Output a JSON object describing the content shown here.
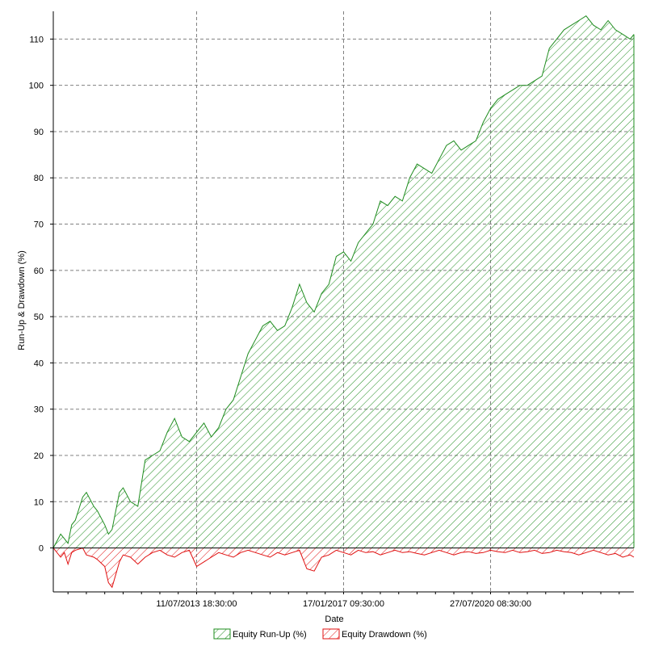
{
  "chart_data": {
    "type": "area",
    "xlabel": "Date",
    "ylabel": "Run-Up & Drawdown (%)",
    "ylim": [
      -9.5,
      116
    ],
    "y_ticks": [
      0,
      10,
      20,
      30,
      40,
      50,
      60,
      70,
      80,
      90,
      100,
      110
    ],
    "x_ticks": [
      {
        "x": 4,
        "label": "11/07/2013 18:30:00"
      },
      {
        "x": 8,
        "label": "17/01/2017 09:30:00"
      },
      {
        "x": 12,
        "label": "27/07/2020 08:30:00"
      }
    ],
    "xlim": [
      0.1,
      15.9
    ],
    "grid": true,
    "legend_placement": "bottom",
    "colors": {
      "runup": "#1e8c1e",
      "drawdown": "#e01010",
      "grid": "#808080"
    },
    "series": [
      {
        "name": "Equity Run-Up (%)",
        "x": [
          0.1,
          0.3,
          0.4,
          0.5,
          0.6,
          0.7,
          0.9,
          1.0,
          1.2,
          1.3,
          1.5,
          1.6,
          1.7,
          1.9,
          2.0,
          2.2,
          2.4,
          2.6,
          2.8,
          3.0,
          3.2,
          3.4,
          3.6,
          3.8,
          4.0,
          4.2,
          4.4,
          4.6,
          4.8,
          5.0,
          5.2,
          5.4,
          5.6,
          5.8,
          6.0,
          6.2,
          6.4,
          6.6,
          6.8,
          7.0,
          7.2,
          7.4,
          7.6,
          7.8,
          8.0,
          8.2,
          8.4,
          8.6,
          8.8,
          9.0,
          9.2,
          9.4,
          9.6,
          9.8,
          10.0,
          10.2,
          10.4,
          10.6,
          10.8,
          11.0,
          11.2,
          11.4,
          11.6,
          11.8,
          12.0,
          12.2,
          12.4,
          12.6,
          12.8,
          13.0,
          13.2,
          13.4,
          13.6,
          13.8,
          14.0,
          14.2,
          14.4,
          14.6,
          14.8,
          15.0,
          15.2,
          15.4,
          15.6,
          15.8,
          15.9
        ],
        "values": [
          0,
          3,
          2,
          1,
          5,
          6,
          11,
          12,
          9,
          8,
          5,
          3,
          4,
          12,
          13,
          10,
          9,
          19,
          20,
          21,
          25,
          28,
          24,
          23,
          25,
          27,
          24,
          26,
          30,
          32,
          37,
          42,
          45,
          48,
          49,
          47,
          48,
          52,
          57,
          53,
          51,
          55,
          57,
          63,
          64,
          62,
          66,
          68,
          70,
          75,
          74,
          76,
          75,
          80,
          83,
          82,
          81,
          84,
          87,
          88,
          86,
          87,
          88,
          92,
          95,
          97,
          98,
          99,
          100,
          100,
          101,
          102,
          108,
          110,
          112,
          113,
          114,
          115,
          113,
          112,
          114,
          112,
          111,
          110,
          111
        ]
      },
      {
        "name": "Equity Drawdown (%)",
        "x": [
          0.1,
          0.3,
          0.4,
          0.5,
          0.6,
          0.7,
          0.9,
          1.0,
          1.2,
          1.3,
          1.5,
          1.6,
          1.7,
          1.9,
          2.0,
          2.2,
          2.4,
          2.6,
          2.8,
          3.0,
          3.2,
          3.4,
          3.6,
          3.8,
          4.0,
          4.2,
          4.4,
          4.6,
          4.8,
          5.0,
          5.2,
          5.4,
          5.6,
          5.8,
          6.0,
          6.2,
          6.4,
          6.6,
          6.8,
          7.0,
          7.2,
          7.4,
          7.6,
          7.8,
          8.0,
          8.2,
          8.4,
          8.6,
          8.8,
          9.0,
          9.2,
          9.4,
          9.6,
          9.8,
          10.0,
          10.2,
          10.4,
          10.6,
          10.8,
          11.0,
          11.2,
          11.4,
          11.6,
          11.8,
          12.0,
          12.2,
          12.4,
          12.6,
          12.8,
          13.0,
          13.2,
          13.4,
          13.6,
          13.8,
          14.0,
          14.2,
          14.4,
          14.6,
          14.8,
          15.0,
          15.2,
          15.4,
          15.6,
          15.8,
          15.9
        ],
        "values": [
          0,
          -2,
          -1,
          -3.5,
          -1,
          -0.5,
          0,
          -1.5,
          -2,
          -2.5,
          -4,
          -7.5,
          -8.5,
          -3,
          -1.5,
          -2,
          -3.5,
          -2,
          -1,
          -0.5,
          -1.5,
          -2,
          -1,
          -0.5,
          -4,
          -3,
          -2,
          -1,
          -1.5,
          -2,
          -1,
          -0.5,
          -1,
          -1.5,
          -2,
          -1,
          -1.5,
          -1,
          -0.5,
          -4.5,
          -5,
          -2,
          -1.5,
          -0.5,
          -1,
          -1.5,
          -0.5,
          -1,
          -0.8,
          -1.5,
          -1,
          -0.5,
          -1,
          -0.8,
          -1.2,
          -1.5,
          -1,
          -0.5,
          -1,
          -1.5,
          -1,
          -0.8,
          -1.2,
          -1,
          -0.5,
          -0.8,
          -1,
          -0.5,
          -1,
          -0.8,
          -0.5,
          -1.2,
          -1,
          -0.5,
          -0.8,
          -1,
          -1.5,
          -1,
          -0.5,
          -1,
          -1.5,
          -1.2,
          -2,
          -1.5,
          -2
        ]
      }
    ]
  }
}
